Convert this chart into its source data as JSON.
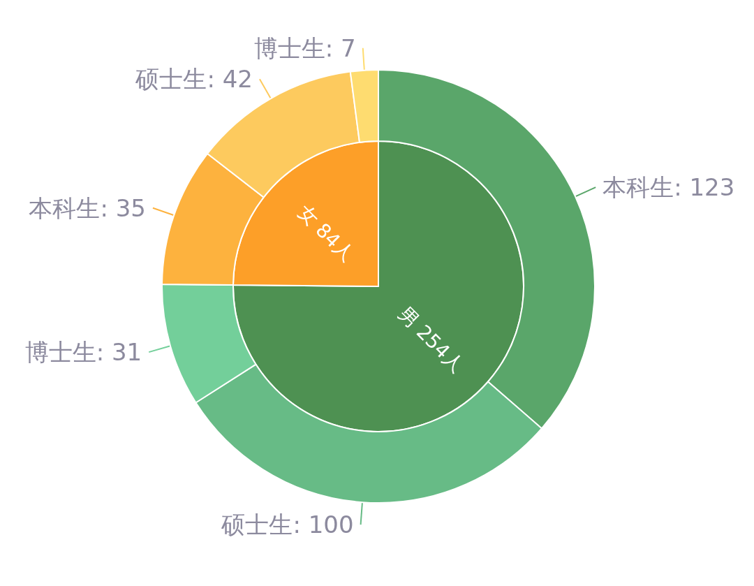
{
  "chart_data": [
    {
      "type": "pie",
      "categories": [
        "男",
        "女"
      ],
      "values": [
        254,
        84
      ],
      "colors": [
        "#4e9152",
        "#fd9f28"
      ],
      "value_labels": [
        "254人",
        "84人"
      ]
    },
    {
      "type": "donut",
      "categories": [
        "本科生",
        "硕士生",
        "博士生",
        "本科生",
        "硕士生",
        "博士生"
      ],
      "values": [
        123,
        100,
        31,
        35,
        42,
        7
      ],
      "colors": [
        "#5aa66a",
        "#67bb86",
        "#73cf9a",
        "#fdb23e",
        "#fdca5e",
        "#fedc70"
      ],
      "value_labels": [
        ": 123",
        ": 100",
        ": 31",
        ": 35",
        ": 42",
        ": 7"
      ]
    }
  ]
}
